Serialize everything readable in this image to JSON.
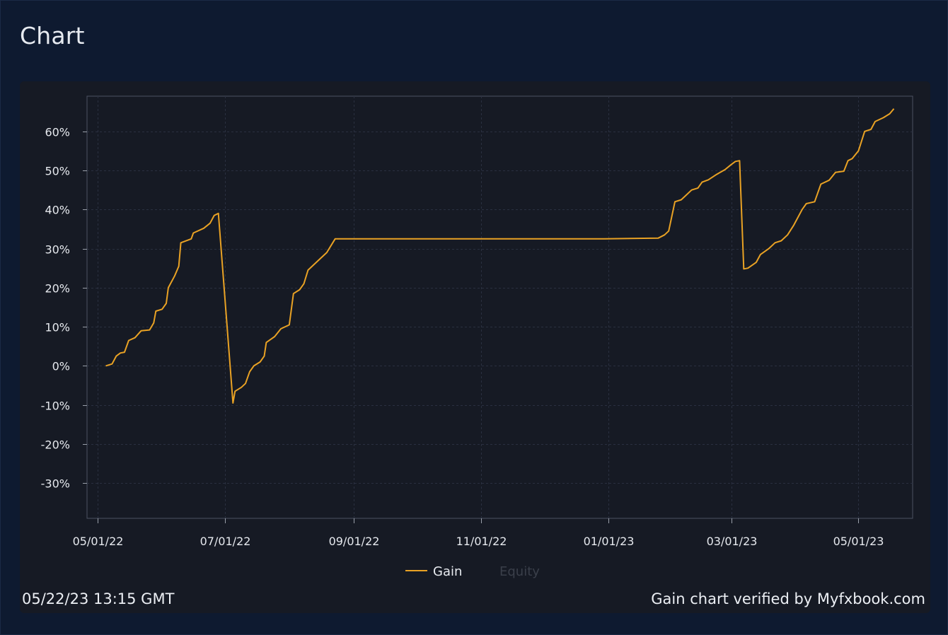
{
  "header": {
    "title": "Chart"
  },
  "footer": {
    "timestamp": "05/22/23 13:15 GMT",
    "verified": "Gain chart verified by Myfxbook.com"
  },
  "colors": {
    "gain": "#e9a224",
    "equity_legend": "#3a3f4a",
    "grid": "#2a3040",
    "axis": "#4c5262"
  },
  "chart_data": {
    "type": "line",
    "y_tick_labels": [
      "60%",
      "50%",
      "40%",
      "30%",
      "20%",
      "10%",
      "0%",
      "-10%",
      "-20%",
      "-30%"
    ],
    "y_ticks": [
      60,
      50,
      40,
      30,
      20,
      10,
      0,
      -10,
      -20,
      -30
    ],
    "x_tick_labels": [
      "05/01/22",
      "07/01/22",
      "09/01/22",
      "11/01/22",
      "01/01/23",
      "03/01/23",
      "05/01/23"
    ],
    "x_ticks": [
      "2022-05-01",
      "2022-07-01",
      "2022-09-01",
      "2022-11-01",
      "2023-01-01",
      "2023-03-01",
      "2023-05-01"
    ],
    "xlim": [
      "2022-04-26",
      "2023-05-27"
    ],
    "ylim": [
      -39,
      69
    ],
    "grid": true,
    "legend_position": "bottom-center",
    "legend": [
      {
        "name": "Gain",
        "active": true
      },
      {
        "name": "Equity",
        "active": false
      }
    ],
    "series": [
      {
        "name": "Gain",
        "points": [
          [
            "2022-05-05",
            0
          ],
          [
            "2022-05-08",
            0.5
          ],
          [
            "2022-05-10",
            2.5
          ],
          [
            "2022-05-12",
            3.3
          ],
          [
            "2022-05-14",
            3.5
          ],
          [
            "2022-05-16",
            6.5
          ],
          [
            "2022-05-19",
            7.2
          ],
          [
            "2022-05-22",
            9.0
          ],
          [
            "2022-05-26",
            9.2
          ],
          [
            "2022-05-28",
            11
          ],
          [
            "2022-05-29",
            14
          ],
          [
            "2022-06-01",
            14.5
          ],
          [
            "2022-06-03",
            16
          ],
          [
            "2022-06-04",
            20
          ],
          [
            "2022-06-07",
            23
          ],
          [
            "2022-06-09",
            25.5
          ],
          [
            "2022-06-10",
            31.5
          ],
          [
            "2022-06-15",
            32.5
          ],
          [
            "2022-06-16",
            34
          ],
          [
            "2022-06-21",
            35.2
          ],
          [
            "2022-06-24",
            36.5
          ],
          [
            "2022-06-26",
            38.5
          ],
          [
            "2022-06-28",
            39.0
          ],
          [
            "2022-07-05",
            -9.5
          ],
          [
            "2022-07-06",
            -6.5
          ],
          [
            "2022-07-09",
            -5.5
          ],
          [
            "2022-07-11",
            -4.5
          ],
          [
            "2022-07-13",
            -1.5
          ],
          [
            "2022-07-15",
            0
          ],
          [
            "2022-07-18",
            1.0
          ],
          [
            "2022-07-20",
            2.5
          ],
          [
            "2022-07-21",
            6.0
          ],
          [
            "2022-07-25",
            7.5
          ],
          [
            "2022-07-28",
            9.5
          ],
          [
            "2022-08-01",
            10.5
          ],
          [
            "2022-08-03",
            18.5
          ],
          [
            "2022-08-06",
            19.5
          ],
          [
            "2022-08-08",
            21
          ],
          [
            "2022-08-10",
            24.5
          ],
          [
            "2022-08-14",
            26.5
          ],
          [
            "2022-08-17",
            28
          ],
          [
            "2022-08-19",
            29
          ],
          [
            "2022-08-23",
            32.5
          ],
          [
            "2022-12-30",
            32.5
          ],
          [
            "2023-01-25",
            32.7
          ],
          [
            "2023-01-28",
            33.5
          ],
          [
            "2023-01-30",
            34.5
          ],
          [
            "2023-02-02",
            42
          ],
          [
            "2023-02-05",
            42.5
          ],
          [
            "2023-02-07",
            43.5
          ],
          [
            "2023-02-10",
            45
          ],
          [
            "2023-02-13",
            45.5
          ],
          [
            "2023-02-15",
            47
          ],
          [
            "2023-02-18",
            47.6
          ],
          [
            "2023-02-22",
            49
          ],
          [
            "2023-02-26",
            50.2
          ],
          [
            "2023-03-01",
            51.5
          ],
          [
            "2023-03-03",
            52.3
          ],
          [
            "2023-03-05",
            52.5
          ],
          [
            "2023-03-07",
            24.8
          ],
          [
            "2023-03-09",
            25
          ],
          [
            "2023-03-13",
            26.5
          ],
          [
            "2023-03-15",
            28.5
          ],
          [
            "2023-03-19",
            30
          ],
          [
            "2023-03-22",
            31.5
          ],
          [
            "2023-03-25",
            32
          ],
          [
            "2023-03-28",
            33.5
          ],
          [
            "2023-03-31",
            36
          ],
          [
            "2023-04-04",
            40
          ],
          [
            "2023-04-06",
            41.5
          ],
          [
            "2023-04-10",
            42
          ],
          [
            "2023-04-13",
            46.5
          ],
          [
            "2023-04-17",
            47.5
          ],
          [
            "2023-04-20",
            49.5
          ],
          [
            "2023-04-24",
            49.8
          ],
          [
            "2023-04-26",
            52.5
          ],
          [
            "2023-04-28",
            53
          ],
          [
            "2023-05-01",
            55
          ],
          [
            "2023-05-04",
            60
          ],
          [
            "2023-05-07",
            60.5
          ],
          [
            "2023-05-09",
            62.5
          ],
          [
            "2023-05-13",
            63.5
          ],
          [
            "2023-05-16",
            64.5
          ],
          [
            "2023-05-18",
            65.8
          ]
        ]
      }
    ]
  }
}
